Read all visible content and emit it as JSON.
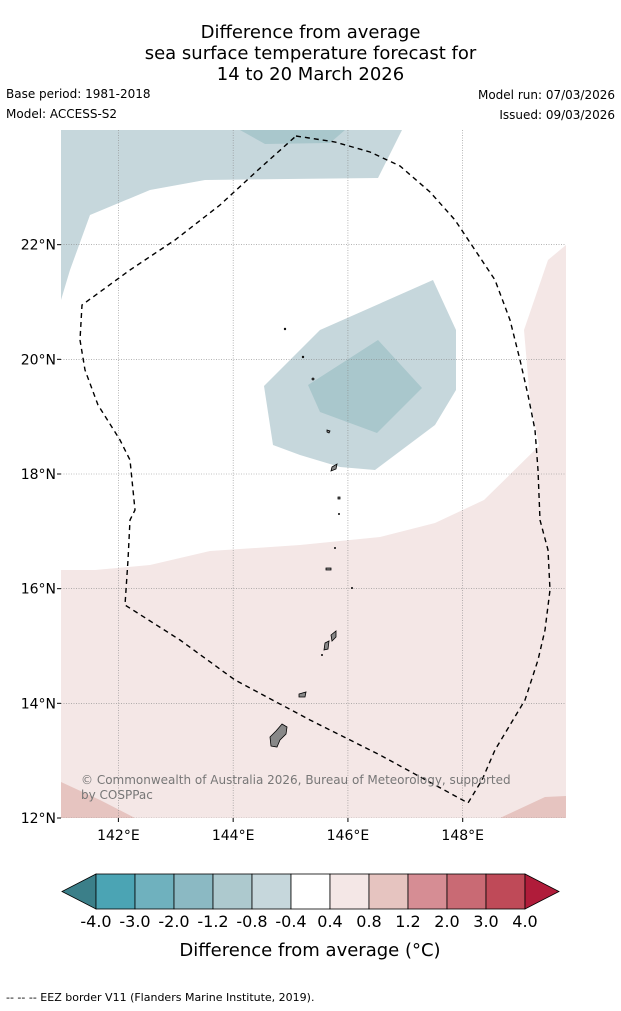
{
  "title": {
    "line1": "Difference from average",
    "line2": "sea surface temperature forecast for",
    "line3": "14 to 20 March 2026"
  },
  "meta": {
    "base_period": "Base period: 1981-2018",
    "model": "Model: ACCESS-S2",
    "model_run": "Model run: 07/03/2026",
    "issued": "Issued: 09/03/2026"
  },
  "map": {
    "lon_range": [
      141.0,
      149.8
    ],
    "lat_range": [
      12.0,
      24.0
    ],
    "lon_ticks": [
      {
        "value": 142,
        "label": "142°E"
      },
      {
        "value": 144,
        "label": "144°E"
      },
      {
        "value": 146,
        "label": "146°E"
      },
      {
        "value": 148,
        "label": "148°E"
      }
    ],
    "lat_ticks": [
      {
        "value": 22,
        "label": "22°N"
      },
      {
        "value": 20,
        "label": "20°N"
      },
      {
        "value": 18,
        "label": "18°N"
      },
      {
        "value": 16,
        "label": "16°N"
      },
      {
        "value": 14,
        "label": "14°N"
      },
      {
        "value": 12,
        "label": "12°N"
      }
    ],
    "grid": true,
    "copyright_line1": "© Commonwealth of Australia 2026, Bureau of Meteorology, supported",
    "copyright_line2": "by COSPPac",
    "colors": {
      "cool_light": "#c6d7dc",
      "cool_mid": "#a9c7cc",
      "warm_light": "#f4e7e6",
      "warm_mid": "#e6c4c0",
      "land": "#888888",
      "eez_border": "#000000"
    }
  },
  "colorbar": {
    "title": "Difference from average ($^{\\circ}$C)",
    "title_display": "Difference from average (°C)",
    "tick_labels": [
      "-4.0",
      "-3.0",
      "-2.0",
      "-1.2",
      "-0.8",
      "-0.4",
      "0.4",
      "0.8",
      "1.2",
      "2.0",
      "3.0",
      "4.0"
    ],
    "colors": [
      "#3b7f89",
      "#4ba4b4",
      "#6fb1be",
      "#8bb9c3",
      "#adc9ce",
      "#c6d7dc",
      "#ffffff",
      "#f4e7e6",
      "#e6c4c0",
      "#d68d94",
      "#c96a74",
      "#bf4a58",
      "#b01c3a"
    ],
    "extend": "both"
  },
  "footer": "--  --  -- EEZ border V11 (Flanders Marine Institute, 2019)."
}
